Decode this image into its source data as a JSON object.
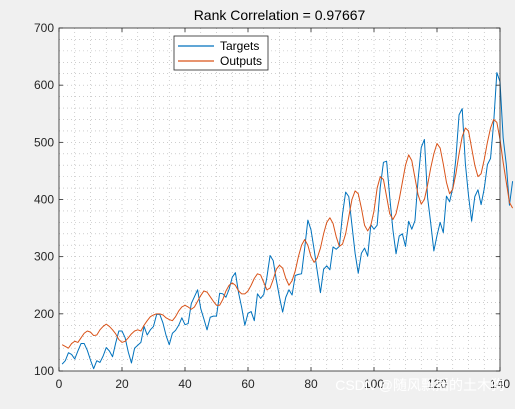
{
  "chart_data": {
    "type": "line",
    "title": "Rank Correlation = 0.97667",
    "xlabel": "",
    "ylabel": "",
    "xlim": [
      0,
      140
    ],
    "ylim": [
      100,
      700
    ],
    "xticks": [
      0,
      20,
      40,
      60,
      80,
      100,
      120,
      140
    ],
    "yticks": [
      100,
      200,
      300,
      400,
      500,
      600,
      700
    ],
    "grid": "minor-dotted",
    "legend_position": "top-left",
    "series": [
      {
        "name": "Targets",
        "color": "#0072BD",
        "values": [
          112,
          118,
          132,
          129,
          121,
          135,
          148,
          148,
          136,
          119,
          104,
          118,
          115,
          126,
          141,
          135,
          125,
          149,
          170,
          170,
          158,
          133,
          114,
          140,
          145,
          150,
          178,
          163,
          172,
          178,
          199,
          199,
          184,
          162,
          146,
          166,
          171,
          180,
          193,
          181,
          183,
          218,
          230,
          242,
          209,
          191,
          172,
          194,
          196,
          196,
          236,
          235,
          229,
          243,
          264,
          272,
          237,
          211,
          180,
          201,
          204,
          188,
          235,
          227,
          234,
          264,
          302,
          293,
          259,
          229,
          203,
          229,
          242,
          233,
          267,
          269,
          270,
          315,
          364,
          347,
          312,
          274,
          237,
          278,
          284,
          277,
          317,
          313,
          318,
          374,
          413,
          405,
          355,
          306,
          271,
          306,
          315,
          301,
          356,
          348,
          355,
          422,
          465,
          467,
          404,
          347,
          305,
          336,
          340,
          318,
          362,
          348,
          363,
          435,
          491,
          505,
          404,
          359,
          310,
          337,
          360,
          342,
          406,
          396,
          420,
          472,
          548,
          559,
          463,
          407,
          362,
          405,
          417,
          391,
          419,
          461,
          472,
          535,
          622,
          606,
          508,
          461,
          390,
          432
        ]
      },
      {
        "name": "Outputs",
        "color": "#D95319",
        "values": [
          146,
          143,
          140,
          148,
          152,
          150,
          158,
          166,
          170,
          168,
          162,
          163,
          172,
          178,
          182,
          178,
          172,
          165,
          155,
          150,
          152,
          158,
          165,
          170,
          172,
          170,
          180,
          188,
          195,
          198,
          200,
          200,
          198,
          193,
          190,
          188,
          195,
          205,
          212,
          215,
          212,
          208,
          212,
          222,
          232,
          240,
          238,
          230,
          222,
          215,
          215,
          225,
          240,
          250,
          254,
          250,
          240,
          235,
          235,
          240,
          250,
          262,
          270,
          268,
          255,
          242,
          245,
          260,
          278,
          285,
          280,
          262,
          250,
          258,
          275,
          300,
          320,
          330,
          320,
          300,
          290,
          298,
          315,
          340,
          360,
          368,
          358,
          335,
          318,
          322,
          340,
          370,
          400,
          415,
          410,
          385,
          355,
          345,
          355,
          380,
          420,
          440,
          435,
          405,
          375,
          365,
          375,
          400,
          430,
          460,
          478,
          468,
          438,
          408,
          392,
          400,
          425,
          455,
          480,
          498,
          490,
          462,
          430,
          410,
          418,
          445,
          480,
          510,
          525,
          520,
          490,
          460,
          440,
          445,
          470,
          500,
          525,
          540,
          535,
          505,
          465,
          430,
          395,
          385
        ]
      }
    ]
  },
  "watermark": "CSDN @随风飘摇的土木狗"
}
